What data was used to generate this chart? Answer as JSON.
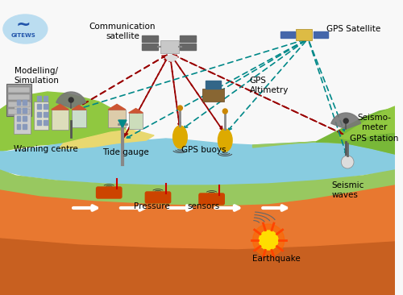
{
  "figsize": [
    5.0,
    3.66
  ],
  "dpi": 100,
  "bg_color": "#f5f5f5",
  "colors": {
    "sky_white": "#f8f8f8",
    "sea_light": "#88cce0",
    "sea_mid": "#6ab8d0",
    "land_green": "#90c840",
    "land_green2": "#78b838",
    "land_tan": "#e8d870",
    "ocean_green": "#98c860",
    "earth_orange": "#e87830",
    "earth_dark": "#c86020",
    "red_arrow": "#990000",
    "teal_arrow": "#008888",
    "white": "#ffffff",
    "dish_gray": "#888888",
    "buoy_yellow": "#ddaa00",
    "pressure_orange": "#cc4400",
    "building_gray": "#aaaaaa",
    "gitews_blue": "#5599cc"
  },
  "labels": {
    "comm_sat": "Communication\nsatellite",
    "gps_sat": "GPS Satellite",
    "gps_alt": "GPS\nAltimetry",
    "modelling": "Modelling/\nSimulation",
    "warning": "Warning centre",
    "tide": "Tide gauge",
    "gps_buoys": "GPS buoys",
    "pressure": "Pressure",
    "sensors": "sensors",
    "seismo": "Seismo-\nmeter",
    "gps_station": "GPS station",
    "seismic": "Seismic\nwaves",
    "earthquake": "Earthquake",
    "gitews": "GITEWS"
  }
}
